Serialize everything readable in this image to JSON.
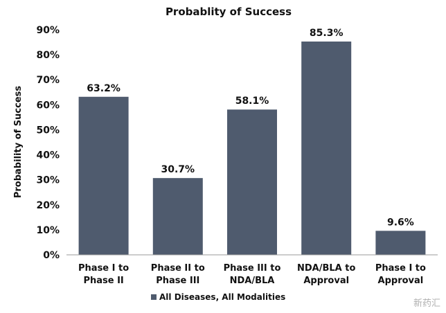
{
  "chart_data": {
    "type": "bar",
    "title": "Probablity of Success",
    "xlabel": "",
    "ylabel": "Probability of Success",
    "ylim": [
      0,
      90
    ],
    "yticks": [
      "0%",
      "10%",
      "20%",
      "30%",
      "40%",
      "50%",
      "60%",
      "70%",
      "80%",
      "90%"
    ],
    "grid": false,
    "legend_position": "bottom",
    "categories": [
      [
        "Phase I to",
        "Phase II"
      ],
      [
        "Phase II to",
        "Phase III"
      ],
      [
        "Phase III to",
        "NDA/BLA"
      ],
      [
        "NDA/BLA to",
        "Approval"
      ],
      [
        "Phase I to",
        "Approval"
      ]
    ],
    "series": [
      {
        "name": "All Diseases, All Modalities",
        "color": "#4f5b6e",
        "values": [
          63.2,
          30.7,
          58.1,
          85.3,
          9.6
        ],
        "labels": [
          "63.2%",
          "30.7%",
          "58.1%",
          "85.3%",
          "9.6%"
        ]
      }
    ]
  },
  "watermark": "新药汇"
}
